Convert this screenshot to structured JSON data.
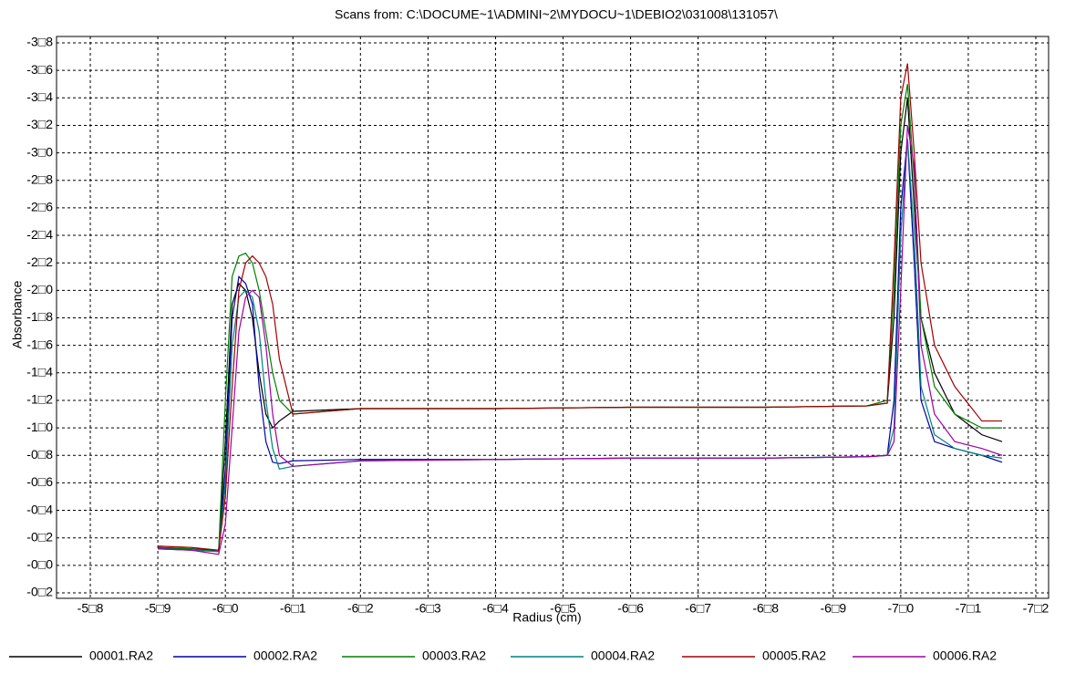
{
  "chart_data": {
    "type": "line",
    "title": "Scans from: C:\\DOCUME~1\\ADMINI~2\\MYDOCU~1\\DEBIO2\\031008\\131057\\",
    "xlabel": "Radius (cm)",
    "ylabel": "Absorbance",
    "grid": true,
    "legend": "bottom",
    "xlim": [
      5.75,
      7.2
    ],
    "ylim": [
      -0.2,
      3.8
    ],
    "xticks": [
      {
        "value": 5.8,
        "label": "-5□8"
      },
      {
        "value": 5.9,
        "label": "-5□9"
      },
      {
        "value": 6.0,
        "label": "-6□0"
      },
      {
        "value": 6.1,
        "label": "-6□1"
      },
      {
        "value": 6.2,
        "label": "-6□2"
      },
      {
        "value": 6.3,
        "label": "-6□3"
      },
      {
        "value": 6.4,
        "label": "-6□4"
      },
      {
        "value": 6.5,
        "label": "-6□5"
      },
      {
        "value": 6.6,
        "label": "-6□6"
      },
      {
        "value": 6.7,
        "label": "-6□7"
      },
      {
        "value": 6.8,
        "label": "-6□8"
      },
      {
        "value": 6.9,
        "label": "-6□9"
      },
      {
        "value": 7.0,
        "label": "-7□0"
      },
      {
        "value": 7.1,
        "label": "-7□1"
      },
      {
        "value": 7.2,
        "label": "-7□2"
      }
    ],
    "yticks": [
      {
        "value": -0.2,
        "label": "-0□2"
      },
      {
        "value": 0.0,
        "label": "-0□0"
      },
      {
        "value": 0.2,
        "label": "-0□2"
      },
      {
        "value": 0.4,
        "label": "-0□4"
      },
      {
        "value": 0.6,
        "label": "-0□6"
      },
      {
        "value": 0.8,
        "label": "-0□8"
      },
      {
        "value": 1.0,
        "label": "-1□0"
      },
      {
        "value": 1.2,
        "label": "-1□2"
      },
      {
        "value": 1.4,
        "label": "-1□4"
      },
      {
        "value": 1.6,
        "label": "-1□6"
      },
      {
        "value": 1.8,
        "label": "-1□8"
      },
      {
        "value": 2.0,
        "label": "-2□0"
      },
      {
        "value": 2.2,
        "label": "-2□2"
      },
      {
        "value": 2.4,
        "label": "-2□4"
      },
      {
        "value": 2.6,
        "label": "-2□6"
      },
      {
        "value": 2.8,
        "label": "-2□8"
      },
      {
        "value": 3.0,
        "label": "-3□0"
      },
      {
        "value": 3.2,
        "label": "-3□2"
      },
      {
        "value": 3.4,
        "label": "-3□4"
      },
      {
        "value": 3.6,
        "label": "-3□6"
      },
      {
        "value": 3.8,
        "label": "-3□8"
      }
    ],
    "x": [
      5.9,
      5.95,
      5.99,
      6.0,
      6.01,
      6.02,
      6.03,
      6.04,
      6.05,
      6.06,
      6.07,
      6.08,
      6.1,
      6.2,
      6.4,
      6.6,
      6.8,
      6.95,
      6.98,
      6.99,
      7.0,
      7.01,
      7.02,
      7.03,
      7.05,
      7.08,
      7.12,
      7.15
    ],
    "series": [
      {
        "name": "00001.RA2",
        "color": "#000000",
        "values": [
          0.13,
          0.12,
          0.1,
          0.9,
          1.9,
          2.05,
          2.0,
          1.8,
          1.4,
          1.1,
          1.0,
          1.05,
          1.12,
          1.14,
          1.14,
          1.15,
          1.15,
          1.16,
          1.18,
          1.8,
          3.0,
          3.4,
          2.6,
          1.8,
          1.4,
          1.1,
          0.95,
          0.9
        ]
      },
      {
        "name": "00002.RA2",
        "color": "#0000a0",
        "values": [
          0.12,
          0.12,
          0.11,
          0.7,
          1.8,
          2.1,
          2.05,
          1.9,
          1.3,
          0.9,
          0.75,
          0.74,
          0.76,
          0.77,
          0.77,
          0.78,
          0.78,
          0.79,
          0.8,
          1.2,
          2.6,
          3.1,
          2.2,
          1.2,
          0.9,
          0.85,
          0.8,
          0.75
        ]
      },
      {
        "name": "00003.RA2",
        "color": "#008000",
        "values": [
          0.13,
          0.12,
          0.1,
          1.2,
          2.1,
          2.25,
          2.27,
          2.2,
          2.0,
          1.7,
          1.4,
          1.2,
          1.1,
          1.14,
          1.14,
          1.15,
          1.15,
          1.16,
          1.2,
          2.0,
          3.2,
          3.5,
          2.8,
          1.8,
          1.3,
          1.1,
          1.0,
          1.0
        ]
      },
      {
        "name": "00004.RA2",
        "color": "#008080",
        "values": [
          0.12,
          0.11,
          0.1,
          0.6,
          1.6,
          1.95,
          2.0,
          1.95,
          1.7,
          1.2,
          0.85,
          0.7,
          0.72,
          0.76,
          0.77,
          0.78,
          0.78,
          0.79,
          0.8,
          1.0,
          2.4,
          3.1,
          2.4,
          1.3,
          0.95,
          0.85,
          0.8,
          0.78
        ]
      },
      {
        "name": "00005.RA2",
        "color": "#a00000",
        "values": [
          0.14,
          0.13,
          0.11,
          0.5,
          1.3,
          2.0,
          2.2,
          2.25,
          2.2,
          2.1,
          1.9,
          1.5,
          1.1,
          1.14,
          1.14,
          1.15,
          1.15,
          1.16,
          1.18,
          2.2,
          3.4,
          3.65,
          3.0,
          2.2,
          1.6,
          1.3,
          1.05,
          1.05
        ]
      },
      {
        "name": "00006.RA2",
        "color": "#a000a0",
        "values": [
          0.12,
          0.11,
          0.08,
          0.3,
          1.0,
          1.7,
          1.95,
          2.0,
          1.95,
          1.6,
          1.1,
          0.8,
          0.72,
          0.76,
          0.77,
          0.78,
          0.78,
          0.79,
          0.8,
          0.9,
          2.0,
          3.2,
          2.9,
          1.6,
          1.1,
          0.9,
          0.85,
          0.8
        ]
      }
    ]
  }
}
